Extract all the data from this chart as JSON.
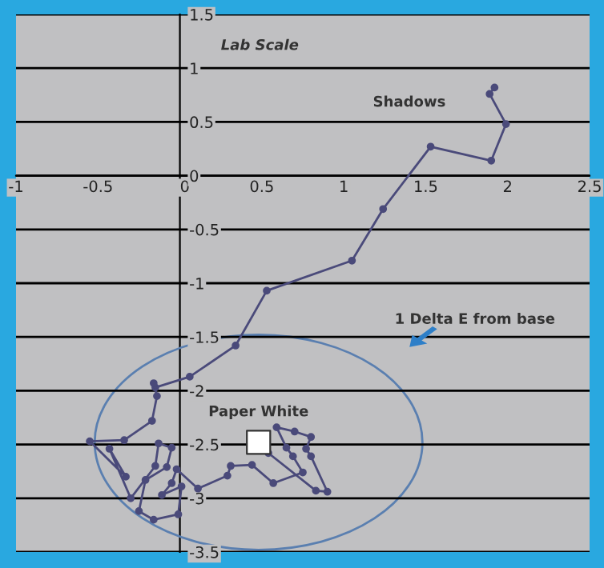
{
  "chart_data": {
    "type": "line",
    "title": "Lab Scale",
    "xlim": [
      -1,
      2.5
    ],
    "xticks": [
      -1,
      -0.5,
      0,
      0.5,
      1,
      1.5,
      2,
      2.5
    ],
    "ylim": [
      -3.5,
      1.5
    ],
    "yticks": [
      -3.5,
      -3,
      -2.5,
      -2,
      -1.5,
      -1,
      -0.5,
      0,
      0.5,
      1,
      1.5
    ],
    "grid": "y",
    "legend": false,
    "series": [
      {
        "marker": "circle",
        "color": "#4a4a7a",
        "x": [
          1.92,
          1.89,
          1.99,
          1.9,
          1.53,
          1.24,
          1.05,
          0.53,
          0.34,
          0.06,
          -0.15,
          -0.16,
          -0.14,
          -0.17,
          -0.34,
          -0.55,
          -0.33,
          -0.43,
          -0.3,
          -0.15,
          -0.13,
          -0.05,
          -0.08,
          -0.21,
          -0.25,
          -0.16,
          -0.01,
          0.01,
          -0.11,
          -0.05,
          -0.02,
          0.11,
          0.29,
          0.31,
          0.44,
          0.57,
          0.75,
          0.69,
          0.65,
          0.59,
          0.7,
          0.8,
          0.77,
          0.8,
          0.9,
          0.83,
          0.54
        ],
        "values": [
          0.82,
          0.76,
          0.48,
          0.14,
          0.27,
          -0.31,
          -0.79,
          -1.07,
          -1.58,
          -1.87,
          -1.97,
          -1.93,
          -2.05,
          -2.28,
          -2.46,
          -2.47,
          -2.8,
          -2.54,
          -3.0,
          -2.7,
          -2.49,
          -2.53,
          -2.71,
          -2.83,
          -3.12,
          -3.2,
          -3.15,
          -2.89,
          -2.97,
          -2.86,
          -2.73,
          -2.91,
          -2.79,
          -2.7,
          -2.69,
          -2.86,
          -2.76,
          -2.61,
          -2.53,
          -2.34,
          -2.38,
          -2.43,
          -2.54,
          -2.61,
          -2.94,
          -2.93,
          -2.58
        ]
      },
      {
        "type": "scatter",
        "marker": "square",
        "color": "#ffffff",
        "x": [
          0.48
        ],
        "values": [
          -2.48
        ]
      }
    ],
    "annotations": [
      "Shadows",
      "1 Delta E from base",
      "Paper White"
    ]
  }
}
